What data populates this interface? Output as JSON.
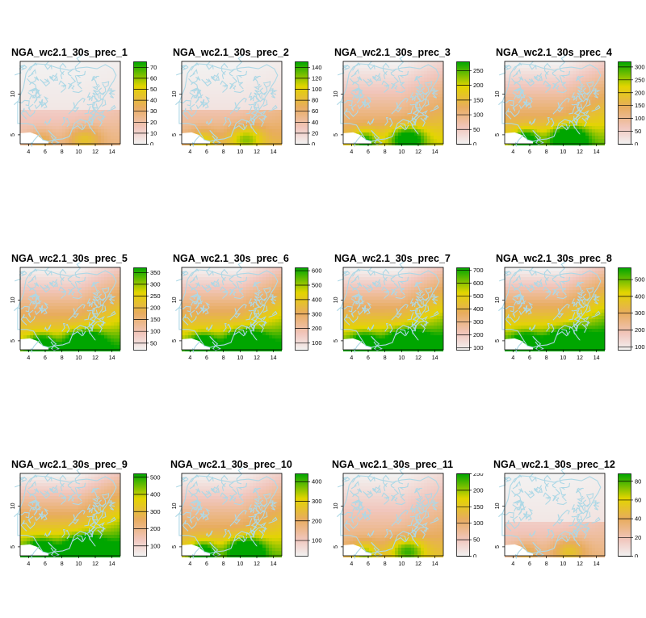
{
  "figure": {
    "panels": [
      {
        "title": "NGA_wc2.1_30s_prec_1",
        "legend": {
          "ticks": [
            0,
            10,
            20,
            30,
            40,
            50,
            60,
            70
          ],
          "max": 75,
          "min": 0
        },
        "intensity": 0.25
      },
      {
        "title": "NGA_wc2.1_30s_prec_2",
        "legend": {
          "ticks": [
            0,
            20,
            40,
            60,
            80,
            100,
            120,
            140
          ],
          "max": 150,
          "min": 0
        },
        "intensity": 0.35
      },
      {
        "title": "NGA_wc2.1_30s_prec_3",
        "legend": {
          "ticks": [
            0,
            50,
            100,
            150,
            200,
            250
          ],
          "max": 280,
          "min": 0
        },
        "intensity": 0.5
      },
      {
        "title": "NGA_wc2.1_30s_prec_4",
        "legend": {
          "ticks": [
            0,
            50,
            100,
            150,
            200,
            250,
            300
          ],
          "max": 320,
          "min": 0
        },
        "intensity": 0.6
      },
      {
        "title": "NGA_wc2.1_30s_prec_5",
        "legend": {
          "ticks": [
            50,
            100,
            150,
            200,
            250,
            300,
            350
          ],
          "max": 370,
          "min": 20
        },
        "intensity": 0.7
      },
      {
        "title": "NGA_wc2.1_30s_prec_6",
        "legend": {
          "ticks": [
            100,
            200,
            300,
            400,
            500,
            600
          ],
          "max": 620,
          "min": 50
        },
        "intensity": 0.75
      },
      {
        "title": "NGA_wc2.1_30s_prec_7",
        "legend": {
          "ticks": [
            100,
            200,
            300,
            400,
            500,
            600,
            700
          ],
          "max": 720,
          "min": 80
        },
        "intensity": 0.8
      },
      {
        "title": "NGA_wc2.1_30s_prec_8",
        "legend": {
          "ticks": [
            100,
            200,
            300,
            400,
            500
          ],
          "max": 570,
          "min": 80
        },
        "intensity": 0.85
      },
      {
        "title": "NGA_wc2.1_30s_prec_9",
        "legend": {
          "ticks": [
            100,
            200,
            300,
            400,
            500
          ],
          "max": 520,
          "min": 40
        },
        "intensity": 0.8
      },
      {
        "title": "NGA_wc2.1_30s_prec_10",
        "legend": {
          "ticks": [
            100,
            200,
            300,
            400
          ],
          "max": 440,
          "min": 20
        },
        "intensity": 0.6
      },
      {
        "title": "NGA_wc2.1_30s_prec_11",
        "legend": {
          "ticks": [
            0,
            50,
            100,
            150,
            200,
            250
          ],
          "max": 250,
          "min": 0
        },
        "intensity": 0.4
      },
      {
        "title": "NGA_wc2.1_30s_prec_12",
        "legend": {
          "ticks": [
            0,
            20,
            40,
            60,
            80
          ],
          "max": 88,
          "min": 0
        },
        "intensity": 0.25
      }
    ],
    "x_ticks": [
      "4",
      "6",
      "8",
      "10",
      "12",
      "14"
    ],
    "y_ticks": [
      "5",
      "10"
    ],
    "colors": {
      "low": "#f2f2f2",
      "pink": "#f1c6bd",
      "orange": "#e8ac5e",
      "yellow": "#e3d500",
      "green": "#00a600",
      "boundary": "#add8e6",
      "ocean": "#ffffff"
    }
  }
}
